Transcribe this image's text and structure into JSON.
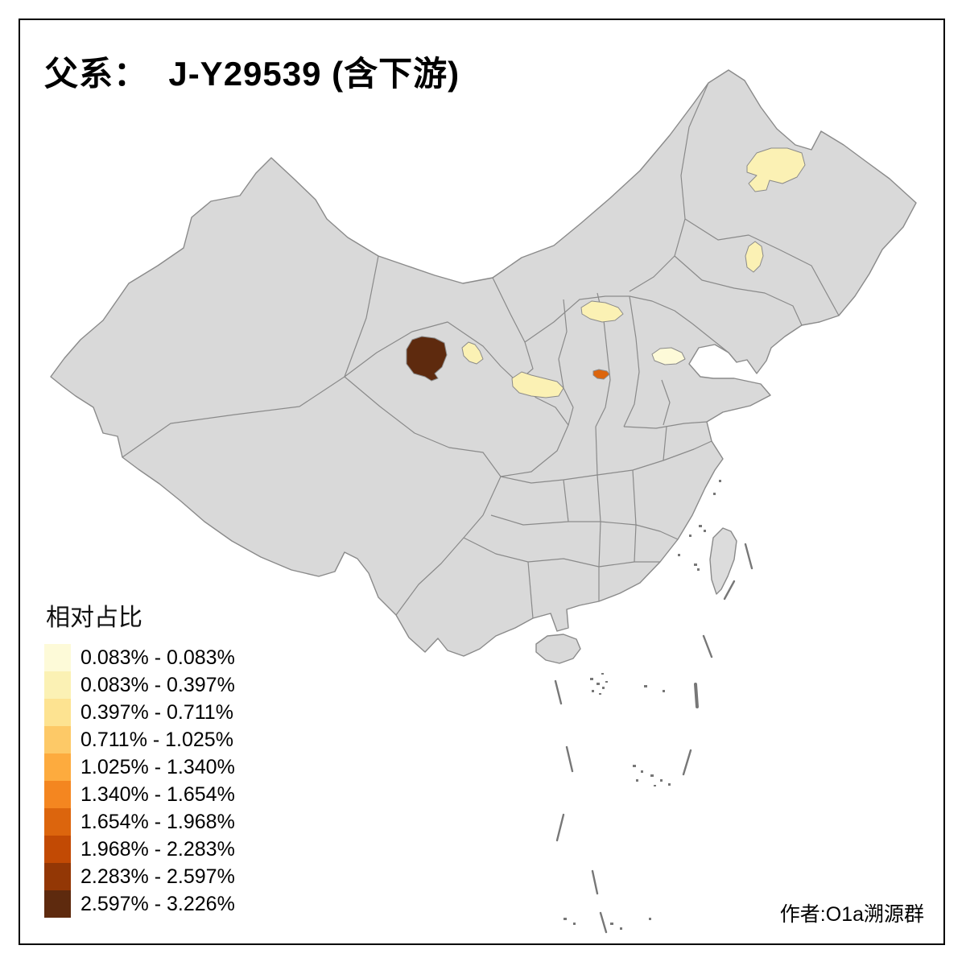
{
  "title": "父系：  J-Y29539 (含下游)",
  "credit": "作者:O1a溯源群",
  "legend": {
    "title": "相对占比",
    "items": [
      {
        "label": "0.083% - 0.083%",
        "color": "#FDFAD8"
      },
      {
        "label": "0.083% - 0.397%",
        "color": "#FBF1B4"
      },
      {
        "label": "0.397% - 0.711%",
        "color": "#FDE391"
      },
      {
        "label": "0.711% - 1.025%",
        "color": "#FDC967"
      },
      {
        "label": "1.025% - 1.340%",
        "color": "#FDAB3E"
      },
      {
        "label": "1.340% - 1.654%",
        "color": "#F48620"
      },
      {
        "label": "1.654% - 1.968%",
        "color": "#DC650D"
      },
      {
        "label": "1.968% - 2.283%",
        "color": "#C24A04"
      },
      {
        "label": "2.283% - 2.597%",
        "color": "#933705"
      },
      {
        "label": "2.597% - 3.226%",
        "color": "#5E2A0E"
      }
    ]
  },
  "map": {
    "land_fill": "#D9D9D9",
    "island_fill": "#DCDCDC",
    "border_color": "#8A8A8A",
    "highlighted_regions": [
      {
        "id": "region-qinghai-northeast",
        "class_index": 9
      },
      {
        "id": "region-haidong-area",
        "class_index": 1
      },
      {
        "id": "region-gansu-southeast",
        "class_index": 1
      },
      {
        "id": "region-shaanxi-north",
        "class_index": 1
      },
      {
        "id": "region-shanxi-southwest",
        "class_index": 6
      },
      {
        "id": "region-hebei-central",
        "class_index": 0
      },
      {
        "id": "region-heilongjiang-north",
        "class_index": 1
      },
      {
        "id": "region-jilin-central",
        "class_index": 1
      }
    ]
  }
}
